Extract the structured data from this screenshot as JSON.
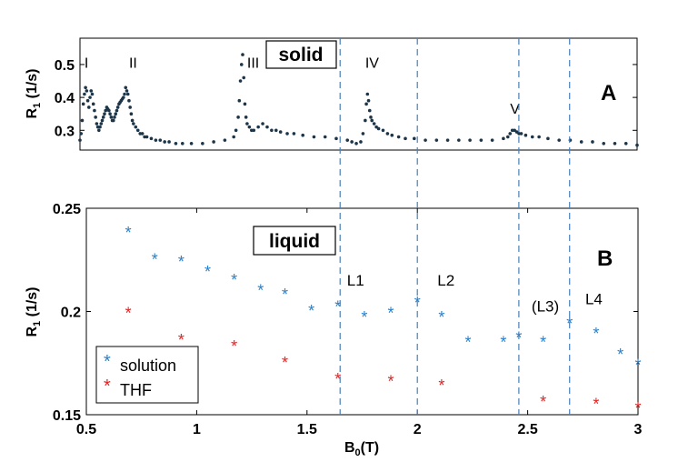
{
  "colors": {
    "dots": "#1d3548",
    "solution": "#2b7fc9",
    "thf": "#e02424",
    "guide": "#4a7fb5",
    "axis": "#000000"
  },
  "chart_data": [
    {
      "type": "scatter",
      "panel_label": "A",
      "box_label": "solid",
      "ylabel": "R",
      "ylabel_sub": "1",
      "ylabel_rest": " (1/s)",
      "xlim": [
        0.5,
        3
      ],
      "ylim": [
        0.24,
        0.58
      ],
      "y_ticks": [
        "0.3",
        "0.4",
        "0.5"
      ],
      "peak_labels": [
        {
          "text": "I",
          "x": 0.52,
          "y": 0.49
        },
        {
          "text": "II",
          "x": 0.72,
          "y": 0.49
        },
        {
          "text": "III",
          "x": 1.25,
          "y": 0.49
        },
        {
          "text": "IV",
          "x": 1.78,
          "y": 0.49
        },
        {
          "text": "V",
          "x": 2.43,
          "y": 0.35
        }
      ],
      "series": [
        {
          "marker": "dot",
          "x": [
            0.5,
            0.505,
            0.51,
            0.515,
            0.52,
            0.525,
            0.53,
            0.535,
            0.54,
            0.545,
            0.55,
            0.555,
            0.56,
            0.565,
            0.57,
            0.575,
            0.58,
            0.585,
            0.59,
            0.595,
            0.6,
            0.605,
            0.61,
            0.615,
            0.62,
            0.625,
            0.63,
            0.635,
            0.64,
            0.645,
            0.65,
            0.655,
            0.66,
            0.665,
            0.67,
            0.675,
            0.68,
            0.685,
            0.69,
            0.695,
            0.7,
            0.705,
            0.71,
            0.715,
            0.72,
            0.725,
            0.73,
            0.735,
            0.74,
            0.75,
            0.76,
            0.77,
            0.78,
            0.79,
            0.8,
            0.82,
            0.84,
            0.86,
            0.88,
            0.9,
            0.93,
            0.96,
            1.0,
            1.05,
            1.1,
            1.15,
            1.19,
            1.2,
            1.21,
            1.215,
            1.22,
            1.225,
            1.23,
            1.235,
            1.24,
            1.245,
            1.25,
            1.26,
            1.27,
            1.28,
            1.3,
            1.32,
            1.34,
            1.36,
            1.38,
            1.4,
            1.43,
            1.46,
            1.5,
            1.55,
            1.6,
            1.65,
            1.7,
            1.72,
            1.74,
            1.76,
            1.77,
            1.78,
            1.785,
            1.79,
            1.795,
            1.8,
            1.805,
            1.81,
            1.82,
            1.83,
            1.84,
            1.86,
            1.88,
            1.9,
            1.93,
            1.96,
            2.0,
            2.05,
            2.1,
            2.15,
            2.2,
            2.25,
            2.3,
            2.35,
            2.4,
            2.42,
            2.43,
            2.44,
            2.45,
            2.46,
            2.47,
            2.48,
            2.5,
            2.53,
            2.56,
            2.6,
            2.65,
            2.7,
            2.75,
            2.8,
            2.85,
            2.9,
            2.95,
            3.0
          ],
          "y": [
            0.27,
            0.29,
            0.33,
            0.38,
            0.41,
            0.43,
            0.42,
            0.39,
            0.37,
            0.4,
            0.42,
            0.41,
            0.38,
            0.36,
            0.34,
            0.32,
            0.31,
            0.3,
            0.31,
            0.32,
            0.33,
            0.34,
            0.35,
            0.36,
            0.37,
            0.365,
            0.36,
            0.35,
            0.34,
            0.33,
            0.33,
            0.34,
            0.35,
            0.36,
            0.37,
            0.38,
            0.385,
            0.39,
            0.395,
            0.4,
            0.41,
            0.43,
            0.42,
            0.41,
            0.39,
            0.37,
            0.35,
            0.33,
            0.32,
            0.31,
            0.3,
            0.29,
            0.29,
            0.28,
            0.28,
            0.275,
            0.27,
            0.27,
            0.265,
            0.265,
            0.26,
            0.26,
            0.26,
            0.26,
            0.265,
            0.27,
            0.28,
            0.3,
            0.34,
            0.39,
            0.45,
            0.5,
            0.53,
            0.46,
            0.38,
            0.34,
            0.32,
            0.31,
            0.3,
            0.3,
            0.31,
            0.32,
            0.31,
            0.3,
            0.3,
            0.295,
            0.29,
            0.29,
            0.285,
            0.28,
            0.28,
            0.275,
            0.27,
            0.265,
            0.26,
            0.265,
            0.29,
            0.33,
            0.38,
            0.41,
            0.39,
            0.36,
            0.34,
            0.33,
            0.32,
            0.31,
            0.305,
            0.3,
            0.29,
            0.285,
            0.28,
            0.275,
            0.275,
            0.27,
            0.27,
            0.27,
            0.27,
            0.27,
            0.27,
            0.27,
            0.275,
            0.28,
            0.29,
            0.3,
            0.3,
            0.295,
            0.29,
            0.29,
            0.285,
            0.28,
            0.28,
            0.275,
            0.27,
            0.27,
            0.265,
            0.265,
            0.26,
            0.26,
            0.26,
            0.255
          ]
        }
      ]
    },
    {
      "type": "scatter",
      "panel_label": "B",
      "box_label": "liquid",
      "xlabel": "B",
      "xlabel_sub": "0",
      "xlabel_rest": "(T)",
      "ylabel": "R",
      "ylabel_sub": "1",
      "ylabel_rest": " (1/s)",
      "xlim": [
        0.5,
        3
      ],
      "ylim": [
        0.15,
        0.25
      ],
      "x_ticks": [
        "0.5",
        "1",
        "1.5",
        "2",
        "2.5",
        "3"
      ],
      "y_ticks": [
        "0.15",
        "0.2",
        "0.25"
      ],
      "legend_position": "bottom-left",
      "line_labels": [
        {
          "text": "L1",
          "x": 1.72,
          "y": 0.2125
        },
        {
          "text": "L2",
          "x": 2.13,
          "y": 0.2125
        },
        {
          "text": "(L3)",
          "x": 2.58,
          "y": 0.2
        }
      ],
      "extra_label": {
        "text": "L4",
        "x": 2.8,
        "y": 0.2035
      },
      "series": [
        {
          "name": "solution",
          "marker": "*",
          "x": [
            0.69,
            0.81,
            0.93,
            1.05,
            1.17,
            1.29,
            1.4,
            1.52,
            1.64,
            1.76,
            1.88,
            2.0,
            2.11,
            2.23,
            2.39,
            2.46,
            2.57,
            2.69,
            2.81,
            2.92,
            3.0
          ],
          "y": [
            0.239,
            0.226,
            0.225,
            0.22,
            0.216,
            0.211,
            0.209,
            0.201,
            0.203,
            0.198,
            0.2,
            0.205,
            0.198,
            0.186,
            0.186,
            0.188,
            0.186,
            0.195,
            0.19,
            0.18,
            0.175
          ]
        },
        {
          "name": "THF",
          "marker": "*",
          "x": [
            0.69,
            0.93,
            1.17,
            1.4,
            1.64,
            1.88,
            2.11,
            2.57,
            2.81,
            3.0
          ],
          "y": [
            0.2,
            0.187,
            0.184,
            0.176,
            0.168,
            0.167,
            0.165,
            0.157,
            0.156,
            0.154
          ]
        }
      ]
    }
  ],
  "guide_lines_x": [
    1.65,
    2.0,
    2.46,
    2.69
  ]
}
